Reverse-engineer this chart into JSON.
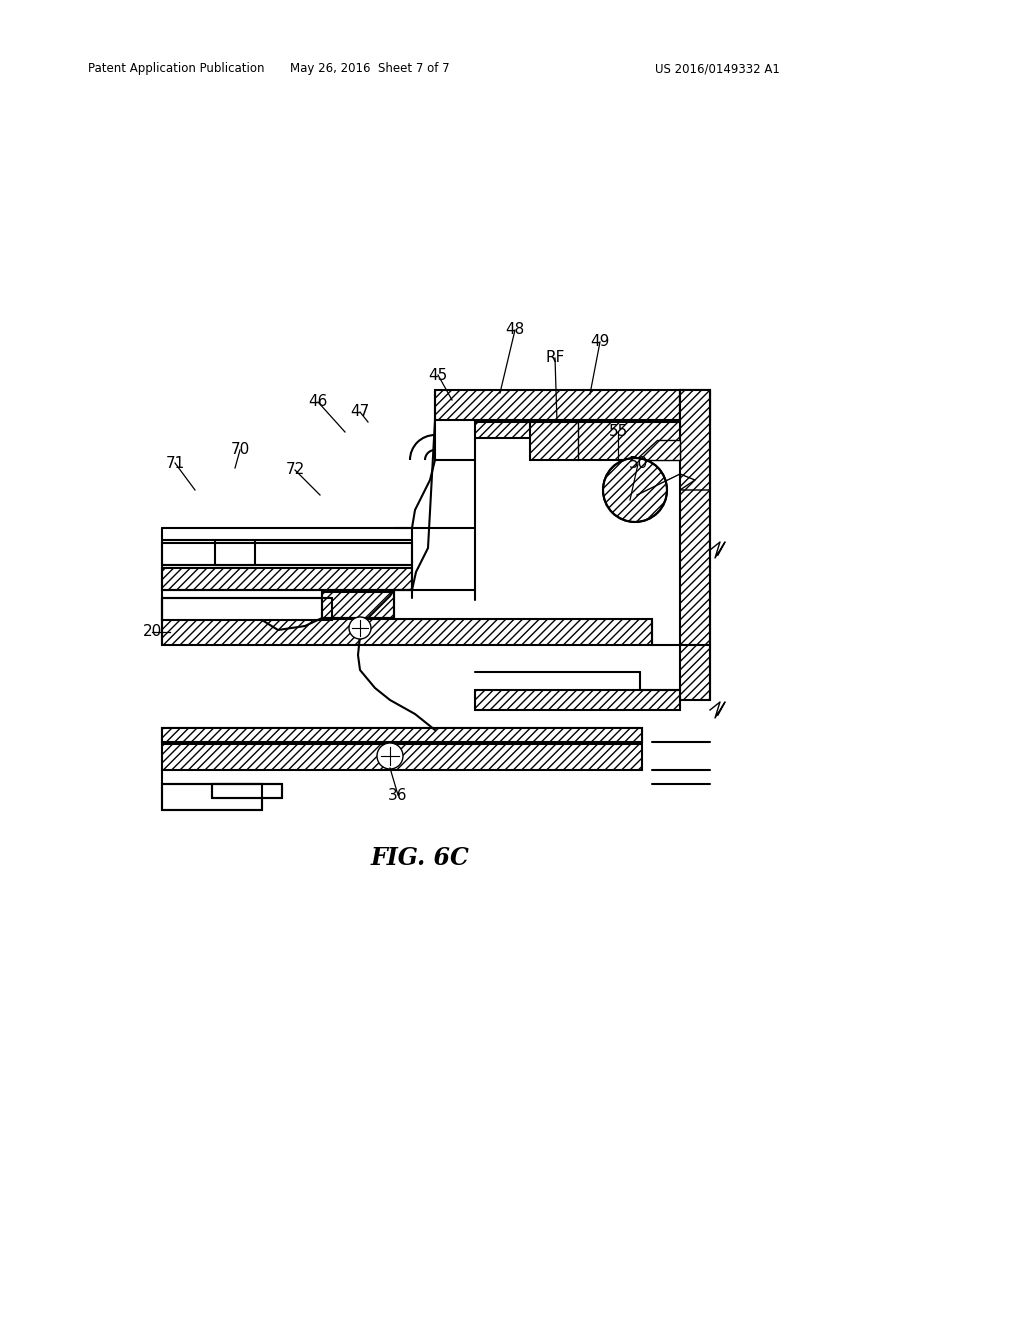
{
  "header_left": "Patent Application Publication",
  "header_center": "May 26, 2016  Sheet 7 of 7",
  "header_right": "US 2016/0149332 A1",
  "fig_label": "FIG. 6C",
  "background_color": "#ffffff"
}
